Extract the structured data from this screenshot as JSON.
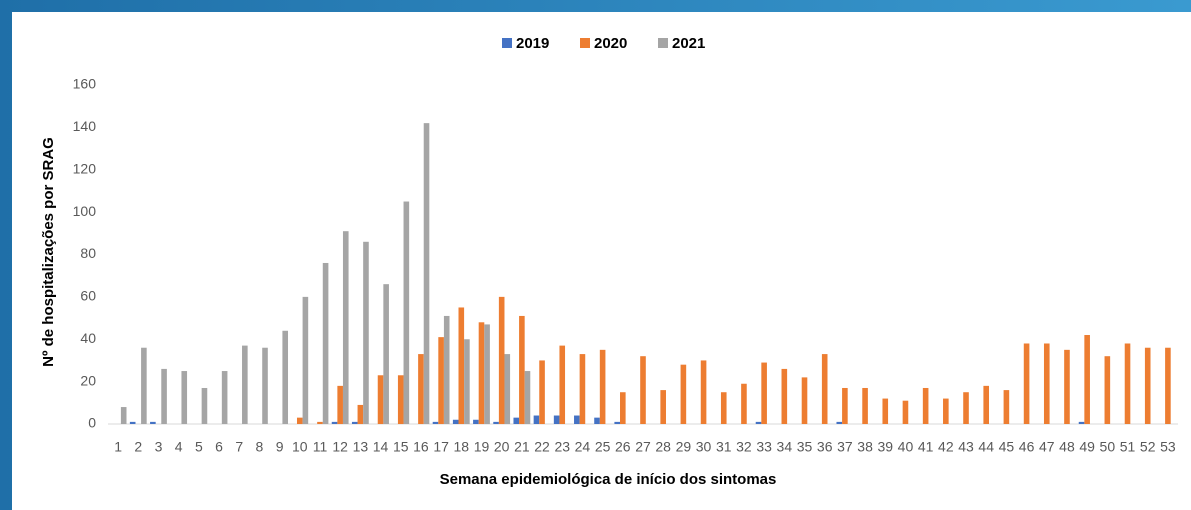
{
  "chart_data": {
    "type": "bar",
    "xlabel": "Semana epidemiológica de início dos sintomas",
    "ylabel": "Nº de hospitalizações por SRAG",
    "categories": [
      "1",
      "2",
      "3",
      "4",
      "5",
      "6",
      "7",
      "8",
      "9",
      "10",
      "11",
      "12",
      "13",
      "14",
      "15",
      "16",
      "17",
      "18",
      "19",
      "20",
      "21",
      "22",
      "23",
      "24",
      "25",
      "26",
      "27",
      "28",
      "29",
      "30",
      "31",
      "32",
      "33",
      "34",
      "35",
      "36",
      "37",
      "38",
      "39",
      "40",
      "41",
      "42",
      "43",
      "44",
      "45",
      "46",
      "47",
      "48",
      "49",
      "50",
      "51",
      "52",
      "53"
    ],
    "series": [
      {
        "name": "2019",
        "color": "#4472c4",
        "values": [
          0,
          1,
          1,
          0,
          0,
          0,
          0,
          0,
          0,
          0,
          0,
          1,
          1,
          0,
          0,
          0,
          1,
          2,
          2,
          1,
          3,
          4,
          4,
          4,
          3,
          1,
          0,
          0,
          0,
          0,
          0,
          0,
          1,
          0,
          0,
          0,
          1,
          0,
          0,
          0,
          0,
          0,
          0,
          0,
          0,
          0,
          0,
          0,
          1,
          0,
          0,
          0,
          0
        ]
      },
      {
        "name": "2020",
        "color": "#ed7d31",
        "values": [
          0,
          0,
          0,
          0,
          0,
          0,
          0,
          0,
          0,
          3,
          1,
          18,
          9,
          23,
          23,
          33,
          41,
          55,
          48,
          60,
          51,
          30,
          37,
          33,
          35,
          15,
          32,
          16,
          28,
          30,
          15,
          19,
          29,
          26,
          22,
          33,
          17,
          17,
          12,
          11,
          17,
          12,
          15,
          18,
          16,
          38,
          38,
          35,
          42,
          32,
          38,
          36,
          36
        ]
      },
      {
        "name": "2021",
        "color": "#a5a5a5",
        "values": [
          8,
          36,
          26,
          25,
          17,
          25,
          37,
          36,
          44,
          60,
          76,
          91,
          86,
          66,
          105,
          142,
          51,
          40,
          47,
          33,
          25,
          null,
          null,
          null,
          null,
          null,
          null,
          null,
          null,
          null,
          null,
          null,
          null,
          null,
          null,
          null,
          null,
          null,
          null,
          null,
          null,
          null,
          null,
          null,
          null,
          null,
          null,
          null,
          null,
          null,
          null,
          null,
          null
        ]
      }
    ],
    "ylim": [
      0,
      160
    ],
    "yticks": [
      0,
      20,
      40,
      60,
      80,
      100,
      120,
      140,
      160
    ],
    "grid": false,
    "legend": "top"
  }
}
